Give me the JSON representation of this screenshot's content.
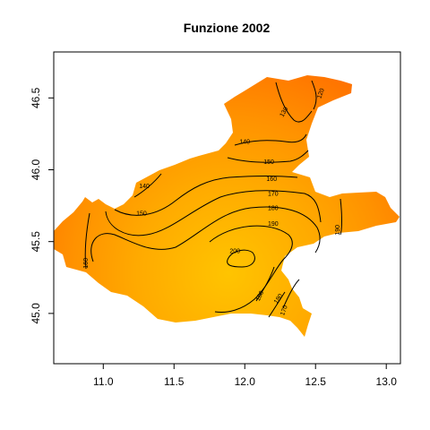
{
  "chart_data": {
    "type": "heatmap",
    "title": "Funzione 2002",
    "xlabel": "",
    "ylabel": "",
    "xlim": [
      10.65,
      13.1
    ],
    "ylim": [
      44.65,
      46.82
    ],
    "x_ticks": [
      11.0,
      11.5,
      12.0,
      12.5,
      13.0
    ],
    "x_tick_labels": [
      "11.0",
      "11.5",
      "12.0",
      "12.5",
      "13.0"
    ],
    "y_ticks": [
      45.0,
      45.5,
      46.0,
      46.5
    ],
    "y_tick_labels": [
      "45.0",
      "45.5",
      "46.0",
      "46.5"
    ],
    "grid": false,
    "legend": "none",
    "colors": {
      "low": "#ff6a00",
      "mid": "#ffa000",
      "high": "#ffc300"
    },
    "value_range": [
      120,
      200
    ],
    "contour_levels": [
      {
        "level": 120,
        "label": "120"
      },
      {
        "level": 140,
        "label": "140"
      },
      {
        "level": 150,
        "label": "150"
      },
      {
        "level": 160,
        "label": "160"
      },
      {
        "level": 170,
        "label": "170"
      },
      {
        "level": 180,
        "label": "180"
      },
      {
        "level": 190,
        "label": "190"
      },
      {
        "level": 200,
        "label": "200"
      }
    ],
    "contour_label_positions": [
      {
        "label": "120",
        "x": 12.54,
        "y": 46.53,
        "rot": -70
      },
      {
        "label": "130",
        "x": 12.28,
        "y": 46.4,
        "rot": -60
      },
      {
        "label": "140",
        "x": 12.0,
        "y": 46.19,
        "rot": 0
      },
      {
        "label": "150",
        "x": 12.17,
        "y": 46.05,
        "rot": 0
      },
      {
        "label": "160",
        "x": 12.19,
        "y": 45.93,
        "rot": 0
      },
      {
        "label": "170",
        "x": 12.2,
        "y": 45.83,
        "rot": 0
      },
      {
        "label": "180",
        "x": 12.2,
        "y": 45.73,
        "rot": 0
      },
      {
        "label": "190",
        "x": 12.2,
        "y": 45.62,
        "rot": 0
      },
      {
        "label": "200",
        "x": 11.93,
        "y": 45.43,
        "rot": 0
      },
      {
        "label": "140",
        "x": 11.29,
        "y": 45.88,
        "rot": 0
      },
      {
        "label": "150",
        "x": 11.27,
        "y": 45.69,
        "rot": 0
      },
      {
        "label": "160",
        "x": 10.88,
        "y": 45.35,
        "rot": -90
      },
      {
        "label": "190",
        "x": 12.66,
        "y": 45.58,
        "rot": -90
      },
      {
        "label": "180",
        "x": 12.11,
        "y": 45.12,
        "rot": -65
      },
      {
        "label": "180",
        "x": 12.24,
        "y": 45.1,
        "rot": -55
      },
      {
        "label": "170",
        "x": 12.28,
        "y": 45.02,
        "rot": -70
      }
    ]
  }
}
